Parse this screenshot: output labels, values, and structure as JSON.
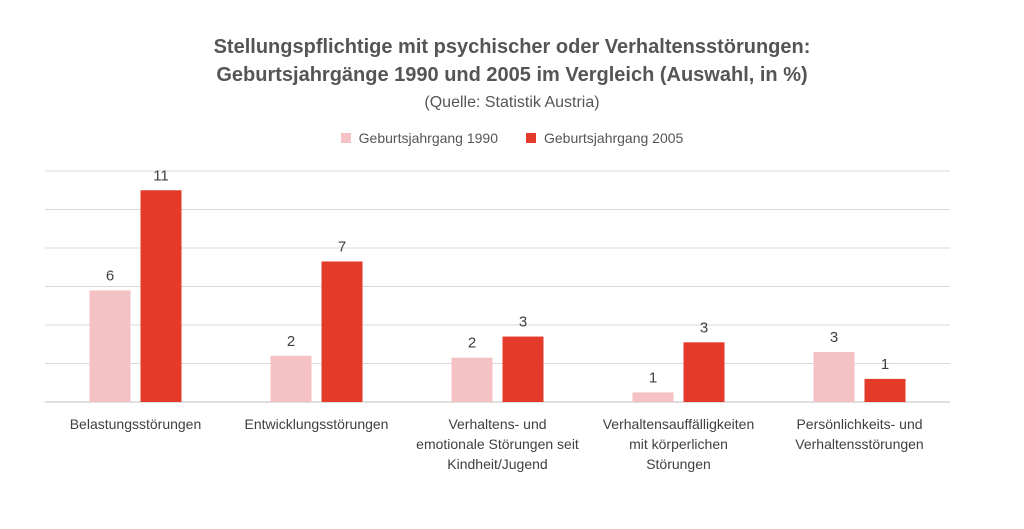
{
  "chart_data": {
    "type": "bar",
    "title_lines": [
      "Stellungspflichtige mit psychischer oder Verhaltensstörungen:",
      "Geburtsjahrgänge 1990 und 2005 im Vergleich (Auswahl, in %)"
    ],
    "subtitle": "(Quelle: Statistik Austria)",
    "categories": [
      [
        "Belastungsstörungen"
      ],
      [
        "Entwicklungsstörungen"
      ],
      [
        "Verhaltens- und",
        "emotionale Störungen seit",
        "Kindheit/Jugend"
      ],
      [
        "Verhaltensauffälligkeiten",
        "mit körperlichen",
        "Störungen"
      ],
      [
        "Persönlichkeits- und",
        "Verhaltensstörungen"
      ]
    ],
    "series": [
      {
        "name": "Geburtsjahrgang 1990",
        "color": "#f4c2c2",
        "values": [
          5.8,
          2.4,
          2.3,
          0.5,
          2.6
        ],
        "labels": [
          "6",
          "2",
          "2",
          "1",
          "3"
        ]
      },
      {
        "name": "Geburtsjahrgang 2005",
        "color": "#e33a2a",
        "values": [
          11.0,
          7.3,
          3.4,
          3.1,
          1.2
        ],
        "labels": [
          "11",
          "7",
          "3",
          "3",
          "1"
        ]
      }
    ],
    "ylim": [
      0,
      12
    ],
    "grid": true,
    "legend_position": "top-center",
    "xlabel": "",
    "ylabel": ""
  }
}
